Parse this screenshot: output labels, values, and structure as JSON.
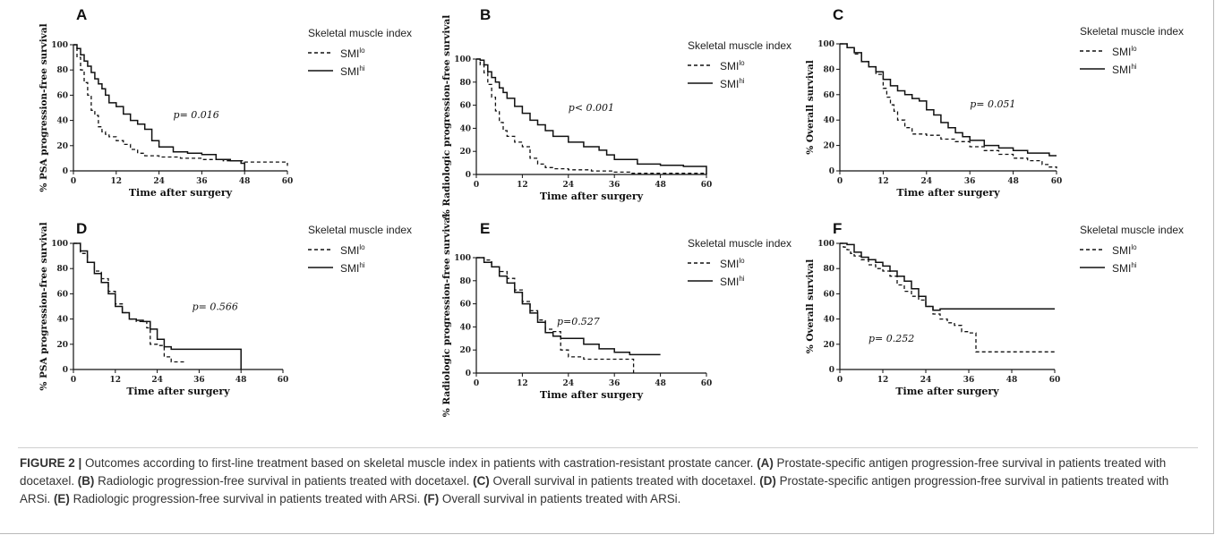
{
  "legend": {
    "title": "Skeletal muscle index",
    "lo_base": "SMI",
    "lo_sup": "lo",
    "hi_base": "SMI",
    "hi_sup": "hi"
  },
  "caption": {
    "figure_label": "FIGURE 2 |",
    "intro": "Outcomes according to first-line treatment based on skeletal muscle index in patients with castration-resistant prostate cancer.",
    "items": [
      {
        "tag": "(A)",
        "text": "Prostate-specific antigen progression-free survival in patients treated with docetaxel."
      },
      {
        "tag": "(B)",
        "text": "Radiologic progression-free survival in patients treated with docetaxel."
      },
      {
        "tag": "(C)",
        "text": "Overall survival in patients treated with docetaxel."
      },
      {
        "tag": "(D)",
        "text": "Prostate-specific antigen progression-free survival in patients treated with ARSi."
      },
      {
        "tag": "(E)",
        "text": "Radiologic progression-free survival in patients treated with ARSi."
      },
      {
        "tag": "(F)",
        "text": "Overall survival in patients treated with ARSi."
      }
    ]
  },
  "chart_data": [
    {
      "panel": "A",
      "type": "line",
      "xlabel": "Time after surgery",
      "ylabel": "% PSA progression-free survival",
      "xlim": [
        0,
        60
      ],
      "ylim": [
        0,
        100
      ],
      "xticks": [
        "0",
        "12",
        "24",
        "36",
        "48",
        "60"
      ],
      "yticks": [
        "0",
        "20",
        "40",
        "60",
        "80",
        "100"
      ],
      "annotation": {
        "text": "p= 0.016",
        "x": 28,
        "y": 42
      },
      "series": [
        {
          "name": "SMI lo",
          "style": "dashed",
          "x": [
            0,
            1,
            2,
            3,
            4,
            5,
            6,
            7,
            8,
            9,
            10,
            12,
            14,
            16,
            18,
            20,
            24,
            30,
            36,
            42,
            48,
            60
          ],
          "y": [
            100,
            90,
            80,
            70,
            60,
            48,
            44,
            35,
            31,
            29,
            27,
            24,
            21,
            17,
            14,
            12,
            11,
            10,
            9,
            8,
            7,
            4
          ]
        },
        {
          "name": "SMI hi",
          "style": "solid",
          "x": [
            0,
            1,
            2,
            3,
            4,
            5,
            6,
            7,
            8,
            9,
            10,
            12,
            14,
            16,
            18,
            20,
            22,
            24,
            28,
            32,
            36,
            40,
            44,
            47,
            48
          ],
          "y": [
            100,
            97,
            92,
            87,
            83,
            78,
            73,
            69,
            65,
            60,
            54,
            51,
            45,
            40,
            37,
            33,
            24,
            19,
            15,
            14,
            13,
            9,
            8,
            6,
            0
          ]
        }
      ]
    },
    {
      "panel": "B",
      "type": "line",
      "xlabel": "Time after surgery",
      "ylabel": "% Radiologic progression-free survival",
      "xlim": [
        0,
        60
      ],
      "ylim": [
        0,
        100
      ],
      "xticks": [
        "0",
        "12",
        "24",
        "36",
        "48",
        "60"
      ],
      "yticks": [
        "0",
        "20",
        "40",
        "60",
        "80",
        "100"
      ],
      "annotation": {
        "text": "p< 0.001",
        "x": 24,
        "y": 55
      },
      "series": [
        {
          "name": "SMI lo",
          "style": "dashed",
          "x": [
            0,
            1,
            2,
            3,
            4,
            5,
            6,
            7,
            8,
            10,
            12,
            14,
            16,
            18,
            20,
            24,
            30,
            36,
            40,
            60
          ],
          "y": [
            100,
            95,
            88,
            78,
            67,
            55,
            45,
            38,
            33,
            28,
            24,
            14,
            9,
            6,
            5,
            4,
            3,
            2,
            1,
            0
          ]
        },
        {
          "name": "SMI hi",
          "style": "solid",
          "x": [
            0,
            1,
            2,
            3,
            4,
            5,
            6,
            7,
            8,
            10,
            12,
            14,
            16,
            18,
            20,
            24,
            28,
            32,
            34,
            36,
            42,
            48,
            54,
            60
          ],
          "y": [
            100,
            99,
            95,
            89,
            84,
            80,
            75,
            71,
            66,
            59,
            53,
            47,
            43,
            38,
            33,
            28,
            24,
            21,
            17,
            13,
            9,
            8,
            7,
            0
          ]
        }
      ]
    },
    {
      "panel": "C",
      "type": "line",
      "xlabel": "Time after surgery",
      "ylabel": "% Overall survival",
      "xlim": [
        0,
        60
      ],
      "ylim": [
        0,
        100
      ],
      "xticks": [
        "0",
        "12",
        "24",
        "36",
        "48",
        "60"
      ],
      "yticks": [
        "0",
        "20",
        "40",
        "60",
        "80",
        "100"
      ],
      "annotation": {
        "text": "p= 0.051",
        "x": 36,
        "y": 50
      },
      "series": [
        {
          "name": "SMI lo",
          "style": "dashed",
          "x": [
            0,
            2,
            4,
            6,
            8,
            10,
            12,
            13,
            14,
            15,
            16,
            18,
            20,
            24,
            28,
            32,
            36,
            40,
            44,
            48,
            52,
            56,
            58,
            60
          ],
          "y": [
            100,
            97,
            92,
            86,
            82,
            76,
            65,
            58,
            52,
            47,
            40,
            34,
            29,
            28,
            25,
            23,
            19,
            16,
            13,
            10,
            8,
            5,
            3,
            2
          ]
        },
        {
          "name": "SMI hi",
          "style": "solid",
          "x": [
            0,
            2,
            4,
            6,
            8,
            10,
            12,
            14,
            16,
            18,
            20,
            22,
            24,
            26,
            28,
            30,
            32,
            34,
            36,
            40,
            44,
            48,
            52,
            56,
            58,
            60
          ],
          "y": [
            100,
            97,
            93,
            86,
            82,
            78,
            72,
            67,
            63,
            60,
            57,
            55,
            48,
            44,
            38,
            34,
            30,
            27,
            24,
            20,
            18,
            16,
            14,
            14,
            12,
            12
          ]
        }
      ]
    },
    {
      "panel": "D",
      "type": "line",
      "xlabel": "Time after surgery",
      "ylabel": "% PSA progression-free survival",
      "xlim": [
        0,
        60
      ],
      "ylim": [
        0,
        100
      ],
      "xticks": [
        "0",
        "12",
        "24",
        "36",
        "48",
        "60"
      ],
      "yticks": [
        "0",
        "20",
        "40",
        "60",
        "80",
        "100"
      ],
      "annotation": {
        "text": "p= 0.566",
        "x": 34,
        "y": 47
      },
      "series": [
        {
          "name": "SMI lo",
          "style": "dashed",
          "x": [
            0,
            2,
            4,
            6,
            8,
            10,
            12,
            14,
            16,
            18,
            20,
            21,
            22,
            24,
            26,
            28,
            32
          ],
          "y": [
            100,
            92,
            85,
            78,
            72,
            62,
            52,
            45,
            40,
            38,
            38,
            33,
            20,
            19,
            10,
            6,
            6
          ]
        },
        {
          "name": "SMI hi",
          "style": "solid",
          "x": [
            0,
            2,
            4,
            6,
            8,
            10,
            12,
            14,
            16,
            18,
            20,
            22,
            24,
            26,
            28,
            36,
            47,
            48
          ],
          "y": [
            100,
            94,
            85,
            76,
            69,
            60,
            50,
            45,
            40,
            39,
            38,
            32,
            24,
            18,
            16,
            16,
            16,
            0
          ]
        }
      ]
    },
    {
      "panel": "E",
      "type": "line",
      "xlabel": "Time after surgery",
      "ylabel": "% Radiologic progression-free survival",
      "xlim": [
        0,
        60
      ],
      "ylim": [
        0,
        100
      ],
      "xticks": [
        "0",
        "12",
        "24",
        "36",
        "48",
        "60"
      ],
      "yticks": [
        "0",
        "20",
        "40",
        "60",
        "80",
        "100"
      ],
      "annotation": {
        "text": "p=0.527",
        "x": 21,
        "y": 42
      },
      "series": [
        {
          "name": "SMI lo",
          "style": "dashed",
          "x": [
            0,
            2,
            4,
            6,
            8,
            10,
            12,
            14,
            16,
            18,
            20,
            22,
            24,
            28,
            32,
            36,
            40,
            41
          ],
          "y": [
            100,
            98,
            92,
            88,
            82,
            72,
            62,
            54,
            46,
            38,
            36,
            20,
            14,
            12,
            12,
            12,
            12,
            0
          ]
        },
        {
          "name": "SMI hi",
          "style": "solid",
          "x": [
            0,
            2,
            4,
            6,
            8,
            10,
            12,
            14,
            16,
            18,
            20,
            22,
            24,
            28,
            32,
            36,
            40,
            44,
            47,
            48
          ],
          "y": [
            100,
            96,
            92,
            84,
            78,
            70,
            60,
            52,
            44,
            35,
            32,
            30,
            30,
            25,
            21,
            18,
            16,
            16,
            16,
            16
          ]
        }
      ]
    },
    {
      "panel": "F",
      "type": "line",
      "xlabel": "Time after surgery",
      "ylabel": "% Overall survival",
      "xlim": [
        0,
        60
      ],
      "ylim": [
        0,
        100
      ],
      "xticks": [
        "0",
        "12",
        "24",
        "36",
        "48",
        "60"
      ],
      "yticks": [
        "0",
        "20",
        "40",
        "60",
        "80",
        "100"
      ],
      "annotation": {
        "text": "p= 0.252",
        "x": 8,
        "y": 22
      },
      "series": [
        {
          "name": "SMI lo",
          "style": "dashed",
          "x": [
            0,
            1,
            2,
            3,
            4,
            6,
            8,
            10,
            12,
            14,
            16,
            18,
            20,
            22,
            24,
            26,
            28,
            30,
            32,
            34,
            36,
            38,
            48,
            60
          ],
          "y": [
            100,
            97,
            95,
            92,
            90,
            87,
            83,
            80,
            78,
            74,
            67,
            62,
            58,
            55,
            50,
            44,
            40,
            37,
            35,
            30,
            29,
            14,
            14,
            14
          ]
        },
        {
          "name": "SMI hi",
          "style": "solid",
          "x": [
            0,
            2,
            4,
            6,
            8,
            10,
            12,
            14,
            16,
            18,
            20,
            22,
            24,
            26,
            28,
            32,
            36,
            48,
            60
          ],
          "y": [
            100,
            99,
            93,
            89,
            87,
            85,
            82,
            78,
            74,
            70,
            64,
            58,
            50,
            47,
            48,
            48,
            48,
            48,
            48
          ]
        }
      ]
    }
  ]
}
